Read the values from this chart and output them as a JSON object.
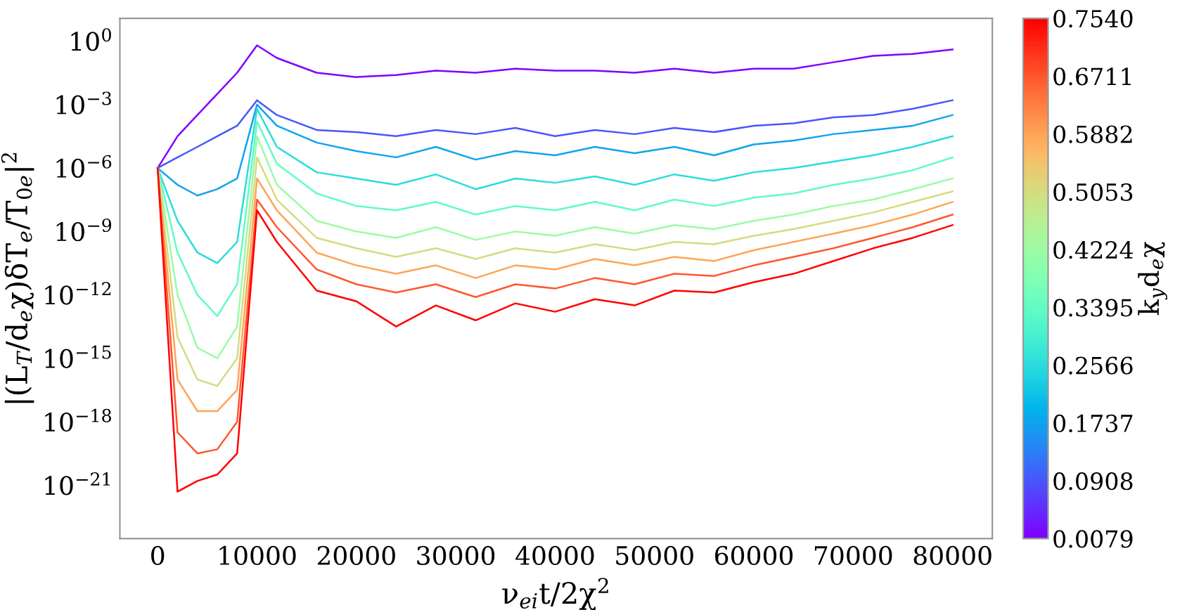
{
  "chart_data": {
    "type": "line",
    "xlabel": "ν$_{ei}$t/2χ$^{2}$",
    "ylabel": "|(L$_{T}$/d$_{e}$χ)δT$_{e}$/T$_{0e}$|$^{2}$",
    "clabel": "k$_{y}$d$_{e}$χ",
    "log": "y",
    "grid": false,
    "legend": false,
    "xlim": [
      -3800,
      84000
    ],
    "xticks": [
      0,
      10000,
      20000,
      30000,
      40000,
      50000,
      60000,
      70000,
      80000
    ],
    "ylim": [
      3e-24,
      12
    ],
    "yticks": [
      {
        "value": 1,
        "label": "10$^{0}$"
      },
      {
        "value": 0.001,
        "label": "10$^{−3}$"
      },
      {
        "value": 1e-06,
        "label": "10$^{−6}$"
      },
      {
        "value": 1e-09,
        "label": "10$^{−9}$"
      },
      {
        "value": 1e-12,
        "label": "10$^{−12}$"
      },
      {
        "value": 1e-15,
        "label": "10$^{−15}$"
      },
      {
        "value": 1e-18,
        "label": "10$^{−18}$"
      },
      {
        "value": 1e-21,
        "label": "10$^{−21}$"
      }
    ],
    "clim": [
      0.0079,
      0.754
    ],
    "cticks": [
      {
        "value": 0.0079,
        "label": "0.0079"
      },
      {
        "value": 0.0908,
        "label": "0.0908"
      },
      {
        "value": 0.1737,
        "label": "0.1737"
      },
      {
        "value": 0.2566,
        "label": "0.2566"
      },
      {
        "value": 0.3395,
        "label": "0.3395"
      },
      {
        "value": 0.4224,
        "label": "0.4224"
      },
      {
        "value": 0.5053,
        "label": "0.5053"
      },
      {
        "value": 0.5882,
        "label": "0.5882"
      },
      {
        "value": 0.6711,
        "label": "0.6711"
      },
      {
        "value": 0.754,
        "label": "0.7540"
      }
    ],
    "x": [
      0,
      2000,
      4000,
      6000,
      8000,
      10000,
      12000,
      16000,
      20000,
      24000,
      28000,
      32000,
      36000,
      40000,
      44000,
      48000,
      52000,
      56000,
      60000,
      64000,
      68000,
      72000,
      76000,
      80000
    ],
    "series": [
      {
        "color": "#8000ff",
        "values": [
          1e-06,
          3.2e-05,
          0.00032,
          0.0032,
          0.032,
          0.63,
          0.16,
          0.032,
          0.02,
          0.025,
          0.04,
          0.032,
          0.05,
          0.04,
          0.04,
          0.032,
          0.05,
          0.032,
          0.05,
          0.05,
          0.1,
          0.2,
          0.25,
          0.4
        ]
      },
      {
        "color": "#4757fb",
        "values": [
          1e-06,
          3.2e-06,
          1e-05,
          3.2e-05,
          0.0001,
          0.0016,
          0.00032,
          6.3e-05,
          5e-05,
          3.2e-05,
          6.3e-05,
          4e-05,
          7.9e-05,
          3.2e-05,
          6.3e-05,
          4e-05,
          7.9e-05,
          5e-05,
          0.0001,
          0.00013,
          0.00025,
          0.00032,
          0.00063,
          0.0016
        ]
      },
      {
        "color": "#0ea4ef",
        "values": [
          1e-06,
          1.6e-07,
          5e-08,
          1e-07,
          3.2e-07,
          0.001,
          0.0001,
          1.6e-05,
          6.3e-06,
          3.2e-06,
          1e-05,
          2.5e-06,
          6.3e-06,
          4e-06,
          1e-05,
          5e-06,
          1e-05,
          4e-06,
          1.3e-05,
          2e-05,
          4e-05,
          6.3e-05,
          0.0001,
          0.00032
        ]
      },
      {
        "color": "#2bdcdc",
        "values": [
          1e-06,
          3.2e-09,
          1e-10,
          3.2e-11,
          3.2e-10,
          0.00063,
          1e-05,
          6.3e-07,
          3.2e-07,
          1.6e-07,
          5e-07,
          1e-07,
          3.2e-07,
          2e-07,
          4e-07,
          1.6e-07,
          5e-07,
          2.5e-07,
          6.3e-07,
          1e-06,
          2e-06,
          4e-06,
          1e-05,
          3.2e-05
        ]
      },
      {
        "color": "#63fbc3",
        "values": [
          1e-06,
          1e-10,
          1e-12,
          1e-13,
          3.2e-12,
          0.00016,
          1.6e-06,
          6.3e-08,
          1.6e-08,
          1e-08,
          2.5e-08,
          6.3e-09,
          1.6e-08,
          1e-08,
          2.5e-08,
          1e-08,
          3.2e-08,
          1.6e-08,
          4e-08,
          6.3e-08,
          1.6e-07,
          3.2e-07,
          7.9e-07,
          3.2e-06
        ]
      },
      {
        "color": "#9cfba4",
        "values": [
          1e-06,
          1e-12,
          3.2e-15,
          1e-15,
          3.2e-14,
          3.2e-05,
          1.6e-07,
          3.2e-09,
          1e-09,
          5e-10,
          1.6e-09,
          4e-10,
          1e-09,
          6.3e-10,
          1.6e-09,
          7.9e-10,
          2e-09,
          1.3e-09,
          3.2e-09,
          6.3e-09,
          1.6e-08,
          3.2e-08,
          1e-07,
          3.2e-07
        ]
      },
      {
        "color": "#d4dc80",
        "values": [
          1e-06,
          1e-14,
          1e-16,
          5e-17,
          1e-15,
          3.2e-06,
          3.2e-08,
          5e-10,
          1.6e-10,
          6.3e-11,
          1.6e-10,
          5e-11,
          1.6e-10,
          1e-10,
          2.5e-10,
          1.3e-10,
          3.2e-10,
          2.5e-10,
          6.3e-10,
          1.3e-09,
          3.2e-09,
          7.9e-09,
          2.5e-08,
          7.9e-08
        ]
      },
      {
        "color": "#ffa457",
        "values": [
          1e-06,
          1e-16,
          3.2e-18,
          3.2e-18,
          3.2e-17,
          3.2e-07,
          1e-08,
          1e-10,
          2.5e-11,
          1e-11,
          2.5e-11,
          6.3e-12,
          2.5e-11,
          1.6e-11,
          5e-11,
          2.5e-11,
          6.3e-11,
          4e-11,
          1.3e-10,
          3.2e-10,
          7.9e-10,
          2e-09,
          6.3e-09,
          2.5e-08
        ]
      },
      {
        "color": "#ff572c",
        "values": [
          1e-06,
          3.2e-19,
          3.2e-20,
          5e-20,
          1e-18,
          3.2e-08,
          1.6e-09,
          1.6e-11,
          3.2e-12,
          1.3e-12,
          3.2e-12,
          7.9e-13,
          3.2e-12,
          2e-12,
          6.3e-12,
          3.2e-12,
          1e-11,
          7.9e-12,
          2.5e-11,
          6.3e-11,
          1.6e-10,
          5e-10,
          1.6e-09,
          6.3e-09
        ]
      },
      {
        "color": "#ff0000",
        "values": [
          1e-06,
          5e-22,
          1.6e-21,
          3.2e-21,
          3.2e-20,
          1e-08,
          3.2e-10,
          1.6e-12,
          5e-13,
          3.2e-14,
          3.2e-13,
          6.3e-14,
          4e-13,
          1.6e-13,
          6.3e-13,
          3.2e-13,
          1.6e-12,
          1.3e-12,
          4e-12,
          1e-11,
          4e-11,
          1.6e-10,
          5e-10,
          2e-09
        ]
      }
    ]
  }
}
